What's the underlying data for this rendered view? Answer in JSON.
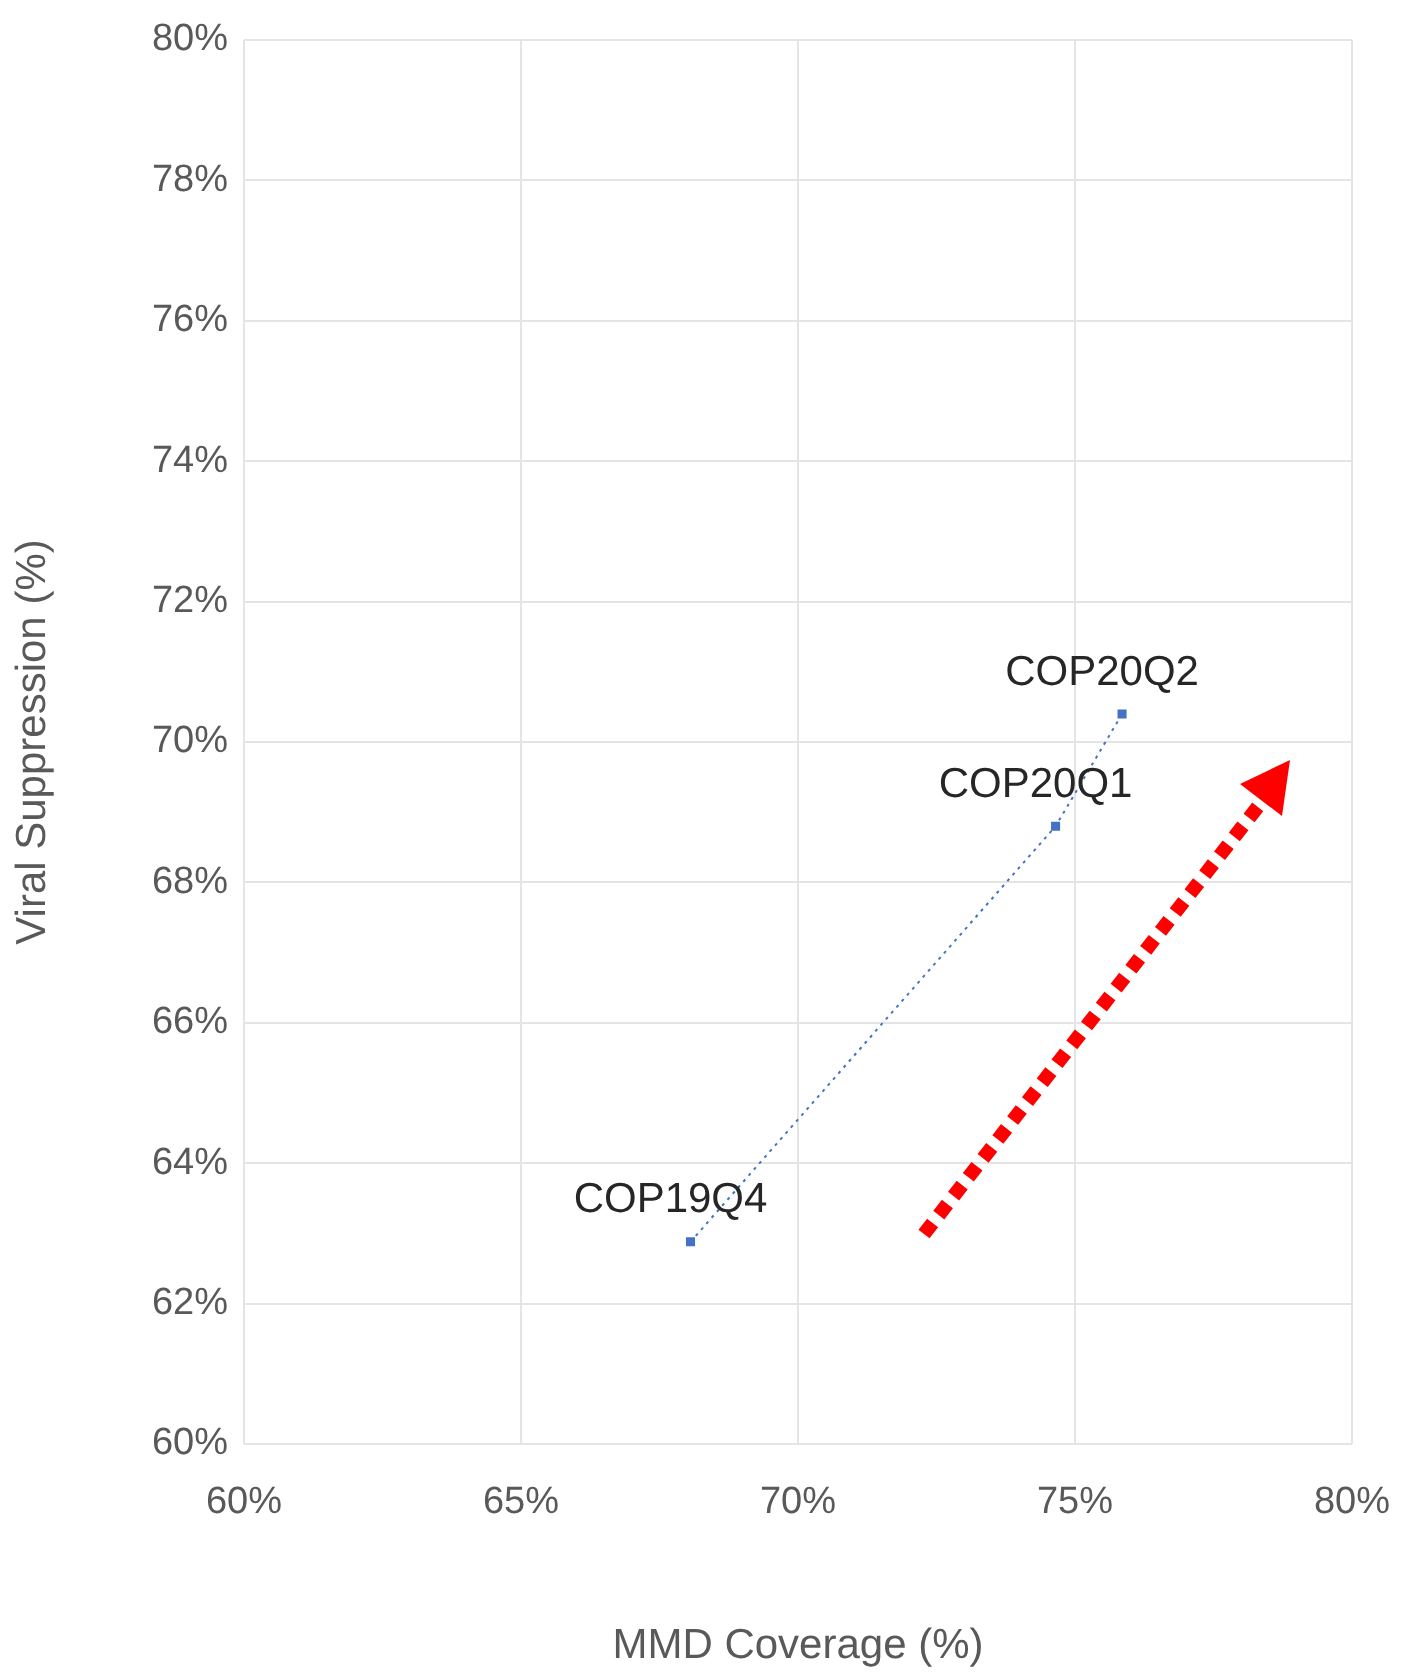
{
  "chart_data": {
    "type": "line",
    "xlabel": "MMD Coverage (%)",
    "ylabel": "Viral Suppression (%)",
    "x": [
      68.06,
      74.65,
      75.85
    ],
    "series": [
      {
        "color": "#4472c4",
        "values": [
          62.88,
          68.8,
          70.4
        ]
      }
    ],
    "xlim": [
      60,
      80
    ],
    "xticks": [
      {
        "value": 60,
        "label": "60%"
      },
      {
        "value": 65,
        "label": "65%"
      },
      {
        "value": 70,
        "label": "70%"
      },
      {
        "value": 75,
        "label": "75%"
      },
      {
        "value": 80,
        "label": "80%"
      }
    ],
    "ylim": [
      60,
      80
    ],
    "yticks": [
      {
        "value": 60,
        "label": "60%"
      },
      {
        "value": 62,
        "label": "62%"
      },
      {
        "value": 64,
        "label": "64%"
      },
      {
        "value": 66,
        "label": "66%"
      },
      {
        "value": 68,
        "label": "68%"
      },
      {
        "value": 70,
        "label": "70%"
      },
      {
        "value": 72,
        "label": "72%"
      },
      {
        "value": 74,
        "label": "74%"
      },
      {
        "value": 76,
        "label": "76%"
      },
      {
        "value": 78,
        "label": "78%"
      },
      {
        "value": 80,
        "label": "80%"
      }
    ],
    "annotations": [
      {
        "text": "COP19Q4",
        "x": 68.06,
        "y": 62.88
      },
      {
        "text": "COP20Q1",
        "x": 74.65,
        "y": 68.8
      },
      {
        "text": "COP20Q2",
        "x": 75.85,
        "y": 70.4
      }
    ],
    "grid": true,
    "marker": "square",
    "line_style": "dotted",
    "legend": false
  }
}
